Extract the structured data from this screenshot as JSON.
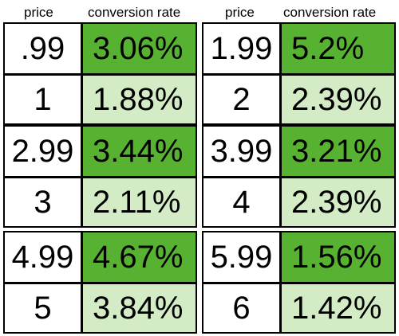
{
  "headers": {
    "left_price": "price",
    "left_rate": "conversion rate",
    "right_price": "price",
    "right_rate": "conversion rate"
  },
  "colors": {
    "highlight": "#57b232",
    "light": "#d3ecc6"
  },
  "chart_data": {
    "type": "table",
    "columns": [
      "price",
      "conversion rate"
    ],
    "rows": [
      {
        "price": ".99",
        "rate": "3.06%"
      },
      {
        "price": "1",
        "rate": "1.88%"
      },
      {
        "price": "1.99",
        "rate": "5.2%"
      },
      {
        "price": "2",
        "rate": "2.39%"
      },
      {
        "price": "2.99",
        "rate": "3.44%"
      },
      {
        "price": "3",
        "rate": "2.11%"
      },
      {
        "price": "3.99",
        "rate": "3.21%"
      },
      {
        "price": "4",
        "rate": "2.39%"
      },
      {
        "price": "4.99",
        "rate": "4.67%"
      },
      {
        "price": "5",
        "rate": "3.84%"
      },
      {
        "price": "5.99",
        "rate": "1.56%"
      },
      {
        "price": "6",
        "rate": "1.42%"
      }
    ]
  }
}
